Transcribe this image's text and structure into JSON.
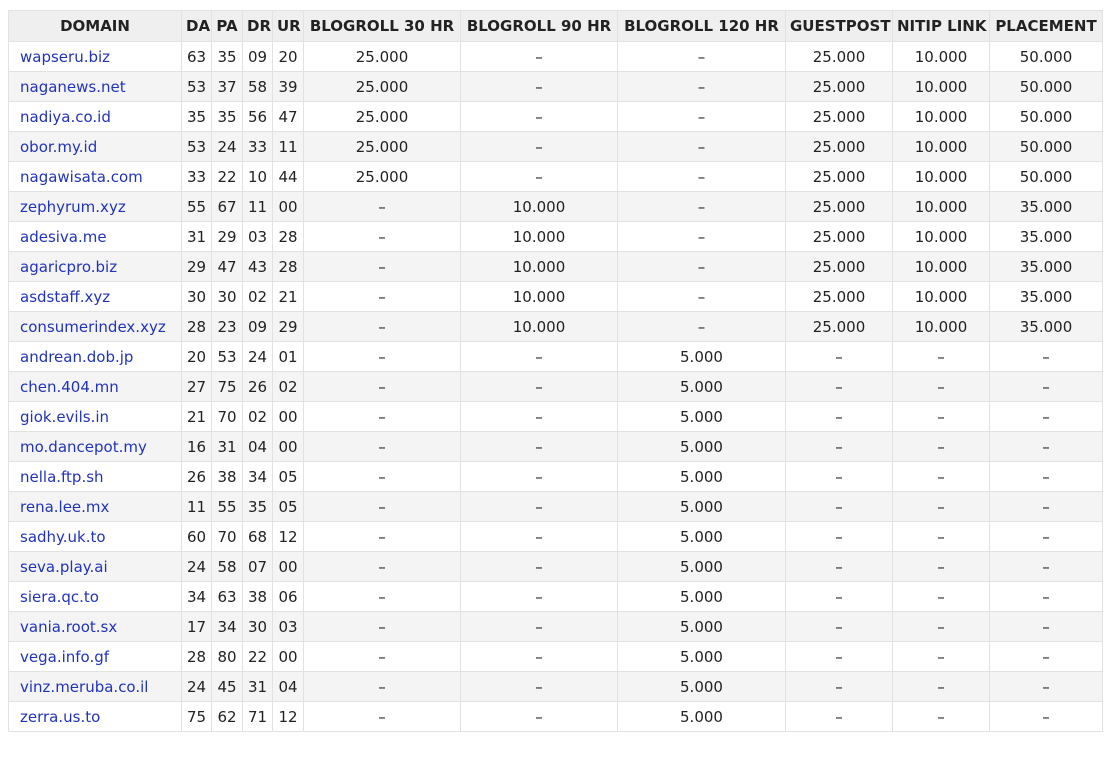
{
  "colors": {
    "header_bg": "#efefef",
    "stripe_bg": "#f4f4f4",
    "link": "#2233bb",
    "border": "#e2e2e2"
  },
  "headers": [
    "DOMAIN",
    "DA",
    "PA",
    "DR",
    "UR",
    "BLOGROLL 30 HR",
    "BLOGROLL 90 HR",
    "BLOGROLL 120 HR",
    "GUESTPOST",
    "NITIP LINK",
    "PLACEMENT"
  ],
  "rows": [
    {
      "domain": "wapseru.biz",
      "da": "63",
      "pa": "35",
      "dr": "09",
      "ur": "20",
      "blogroll30": "25.000",
      "blogroll90": "–",
      "blogroll120": "–",
      "guestpost": "25.000",
      "nitip": "10.000",
      "placement": "50.000"
    },
    {
      "domain": "naganews.net",
      "da": "53",
      "pa": "37",
      "dr": "58",
      "ur": "39",
      "blogroll30": "25.000",
      "blogroll90": "–",
      "blogroll120": "–",
      "guestpost": "25.000",
      "nitip": "10.000",
      "placement": "50.000"
    },
    {
      "domain": "nadiya.co.id",
      "da": "35",
      "pa": "35",
      "dr": "56",
      "ur": "47",
      "blogroll30": "25.000",
      "blogroll90": "–",
      "blogroll120": "–",
      "guestpost": "25.000",
      "nitip": "10.000",
      "placement": "50.000"
    },
    {
      "domain": "obor.my.id",
      "da": "53",
      "pa": "24",
      "dr": "33",
      "ur": "11",
      "blogroll30": "25.000",
      "blogroll90": "–",
      "blogroll120": "–",
      "guestpost": "25.000",
      "nitip": "10.000",
      "placement": "50.000"
    },
    {
      "domain": "nagawisata.com",
      "da": "33",
      "pa": "22",
      "dr": "10",
      "ur": "44",
      "blogroll30": "25.000",
      "blogroll90": "–",
      "blogroll120": "–",
      "guestpost": "25.000",
      "nitip": "10.000",
      "placement": "50.000"
    },
    {
      "domain": "zephyrum.xyz",
      "da": "55",
      "pa": "67",
      "dr": "11",
      "ur": "00",
      "blogroll30": "–",
      "blogroll90": "10.000",
      "blogroll120": "–",
      "guestpost": "25.000",
      "nitip": "10.000",
      "placement": "35.000"
    },
    {
      "domain": "adesiva.me",
      "da": "31",
      "pa": "29",
      "dr": "03",
      "ur": "28",
      "blogroll30": "–",
      "blogroll90": "10.000",
      "blogroll120": "–",
      "guestpost": "25.000",
      "nitip": "10.000",
      "placement": "35.000"
    },
    {
      "domain": "agaricpro.biz",
      "da": "29",
      "pa": "47",
      "dr": "43",
      "ur": "28",
      "blogroll30": "–",
      "blogroll90": "10.000",
      "blogroll120": "–",
      "guestpost": "25.000",
      "nitip": "10.000",
      "placement": "35.000"
    },
    {
      "domain": "asdstaff.xyz",
      "da": "30",
      "pa": "30",
      "dr": "02",
      "ur": "21",
      "blogroll30": "–",
      "blogroll90": "10.000",
      "blogroll120": "–",
      "guestpost": "25.000",
      "nitip": "10.000",
      "placement": "35.000"
    },
    {
      "domain": "consumerindex.xyz",
      "da": "28",
      "pa": "23",
      "dr": "09",
      "ur": "29",
      "blogroll30": "–",
      "blogroll90": "10.000",
      "blogroll120": "–",
      "guestpost": "25.000",
      "nitip": "10.000",
      "placement": "35.000"
    },
    {
      "domain": "andrean.dob.jp",
      "da": "20",
      "pa": "53",
      "dr": "24",
      "ur": "01",
      "blogroll30": "–",
      "blogroll90": "–",
      "blogroll120": "5.000",
      "guestpost": "–",
      "nitip": "–",
      "placement": "–"
    },
    {
      "domain": "chen.404.mn",
      "da": "27",
      "pa": "75",
      "dr": "26",
      "ur": "02",
      "blogroll30": "–",
      "blogroll90": "–",
      "blogroll120": "5.000",
      "guestpost": "–",
      "nitip": "–",
      "placement": "–"
    },
    {
      "domain": "giok.evils.in",
      "da": "21",
      "pa": "70",
      "dr": "02",
      "ur": "00",
      "blogroll30": "–",
      "blogroll90": "–",
      "blogroll120": "5.000",
      "guestpost": "–",
      "nitip": "–",
      "placement": "–"
    },
    {
      "domain": "mo.dancepot.my",
      "da": "16",
      "pa": "31",
      "dr": "04",
      "ur": "00",
      "blogroll30": "–",
      "blogroll90": "–",
      "blogroll120": "5.000",
      "guestpost": "–",
      "nitip": "–",
      "placement": "–"
    },
    {
      "domain": "nella.ftp.sh",
      "da": "26",
      "pa": "38",
      "dr": "34",
      "ur": "05",
      "blogroll30": "–",
      "blogroll90": "–",
      "blogroll120": "5.000",
      "guestpost": "–",
      "nitip": "–",
      "placement": "–"
    },
    {
      "domain": "rena.lee.mx",
      "da": "11",
      "pa": "55",
      "dr": "35",
      "ur": "05",
      "blogroll30": "–",
      "blogroll90": "–",
      "blogroll120": "5.000",
      "guestpost": "–",
      "nitip": "–",
      "placement": "–"
    },
    {
      "domain": "sadhy.uk.to",
      "da": "60",
      "pa": "70",
      "dr": "68",
      "ur": "12",
      "blogroll30": "–",
      "blogroll90": "–",
      "blogroll120": "5.000",
      "guestpost": "–",
      "nitip": "–",
      "placement": "–"
    },
    {
      "domain": "seva.play.ai",
      "da": "24",
      "pa": "58",
      "dr": "07",
      "ur": "00",
      "blogroll30": "–",
      "blogroll90": "–",
      "blogroll120": "5.000",
      "guestpost": "–",
      "nitip": "–",
      "placement": "–"
    },
    {
      "domain": "siera.qc.to",
      "da": "34",
      "pa": "63",
      "dr": "38",
      "ur": "06",
      "blogroll30": "–",
      "blogroll90": "–",
      "blogroll120": "5.000",
      "guestpost": "–",
      "nitip": "–",
      "placement": "–"
    },
    {
      "domain": "vania.root.sx",
      "da": "17",
      "pa": "34",
      "dr": "30",
      "ur": "03",
      "blogroll30": "–",
      "blogroll90": "–",
      "blogroll120": "5.000",
      "guestpost": "–",
      "nitip": "–",
      "placement": "–"
    },
    {
      "domain": "vega.info.gf",
      "da": "28",
      "pa": "80",
      "dr": "22",
      "ur": "00",
      "blogroll30": "–",
      "blogroll90": "–",
      "blogroll120": "5.000",
      "guestpost": "–",
      "nitip": "–",
      "placement": "–"
    },
    {
      "domain": "vinz.meruba.co.il",
      "da": "24",
      "pa": "45",
      "dr": "31",
      "ur": "04",
      "blogroll30": "–",
      "blogroll90": "–",
      "blogroll120": "5.000",
      "guestpost": "–",
      "nitip": "–",
      "placement": "–"
    },
    {
      "domain": "zerra.us.to",
      "da": "75",
      "pa": "62",
      "dr": "71",
      "ur": "12",
      "blogroll30": "–",
      "blogroll90": "–",
      "blogroll120": "5.000",
      "guestpost": "–",
      "nitip": "–",
      "placement": "–"
    }
  ]
}
